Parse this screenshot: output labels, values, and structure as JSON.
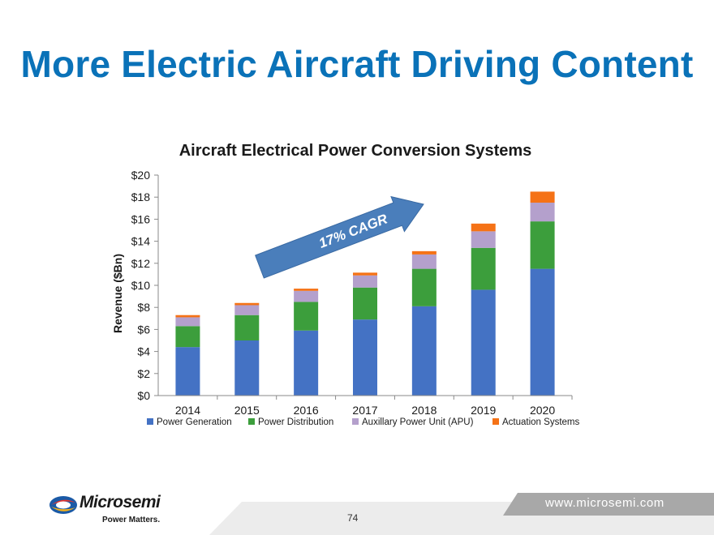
{
  "page": {
    "title": "More Electric Aircraft Driving Content",
    "url": "www.microsemi.com",
    "page_number": "74",
    "logo": {
      "name": "Microsemi",
      "tagline": "Power Matters."
    }
  },
  "chart_data": {
    "type": "bar",
    "stacked": true,
    "title": "Aircraft Electrical Power Conversion Systems",
    "xlabel": "",
    "ylabel": "Revenue ($Bn)",
    "ylim": [
      0,
      20
    ],
    "ytick_step": 2,
    "ytick_prefix": "$",
    "grid": false,
    "legend_position": "bottom",
    "categories": [
      "2014",
      "2015",
      "2016",
      "2017",
      "2018",
      "2019",
      "2020"
    ],
    "series": [
      {
        "name": "Power Generation",
        "color": "#4472c4",
        "values": [
          4.4,
          5.0,
          5.9,
          6.9,
          8.1,
          9.6,
          11.5
        ]
      },
      {
        "name": "Power Distribution",
        "color": "#3c9e3c",
        "values": [
          1.9,
          2.3,
          2.6,
          2.9,
          3.4,
          3.8,
          4.3
        ]
      },
      {
        "name": "Auxillary Power Unit (APU)",
        "color": "#b4a0cc",
        "values": [
          0.8,
          0.9,
          1.0,
          1.1,
          1.3,
          1.5,
          1.7
        ]
      },
      {
        "name": "Actuation Systems",
        "color": "#f57216",
        "values": [
          0.2,
          0.2,
          0.2,
          0.25,
          0.3,
          0.7,
          1.0
        ]
      }
    ],
    "annotation": {
      "text": "17% CAGR",
      "arrow_color": "#4a7ebb"
    }
  }
}
